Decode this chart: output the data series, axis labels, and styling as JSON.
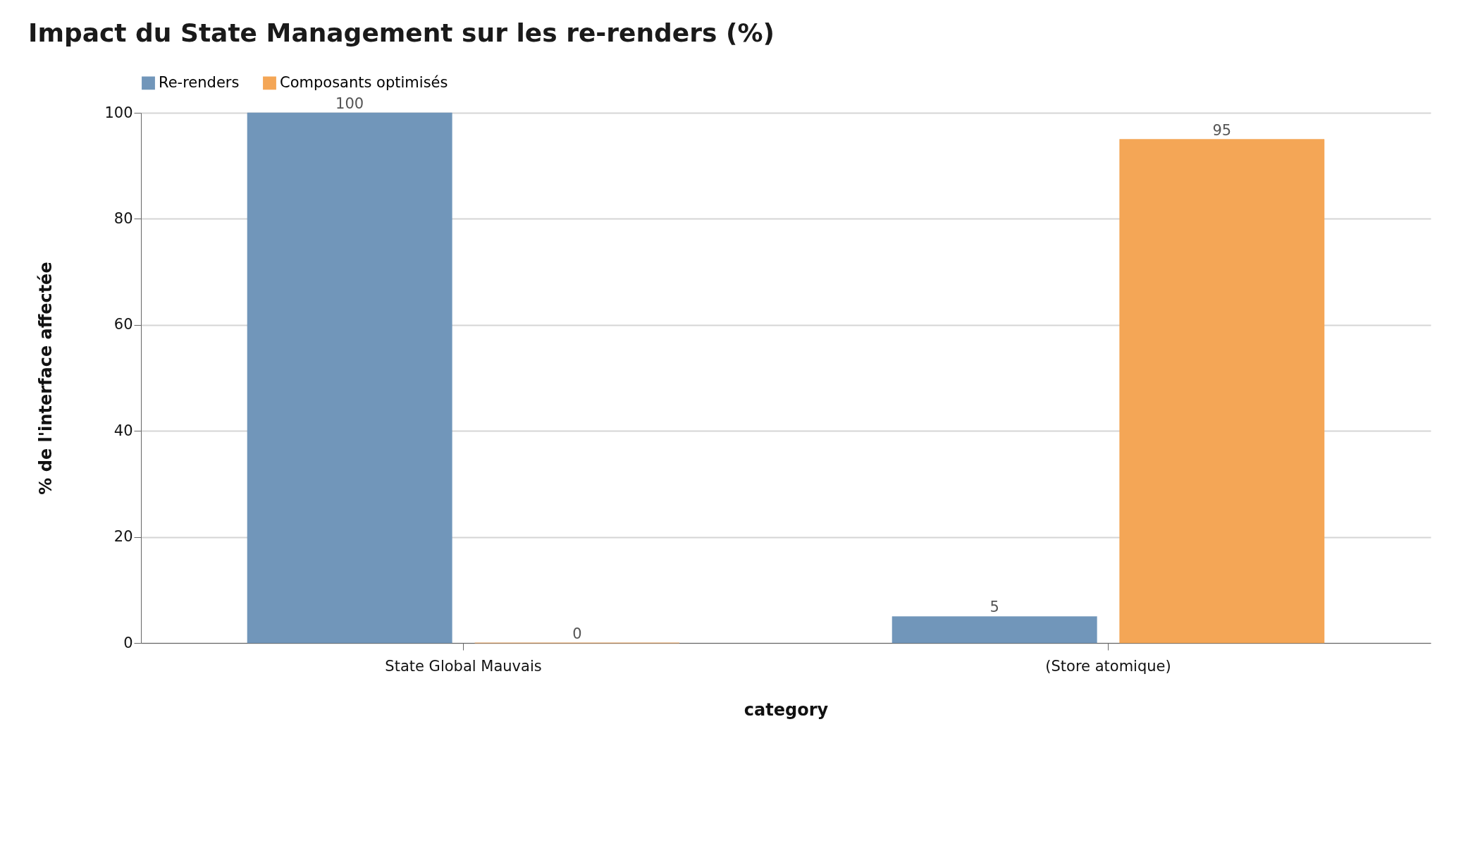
{
  "chart_data": {
    "type": "bar",
    "title": "Impact du State Management sur les re-renders (%)",
    "xlabel": "category",
    "ylabel": "% de l'interface affectée",
    "categories": [
      "State Global Mauvais",
      "(Store atomique)"
    ],
    "series": [
      {
        "name": "Re-renders",
        "color": "#7196ba",
        "values": [
          100,
          5
        ]
      },
      {
        "name": "Composants optimisés",
        "color": "#f4a656",
        "values": [
          0,
          95
        ]
      }
    ],
    "ylim": [
      0,
      100
    ],
    "yticks": [
      0,
      20,
      40,
      60,
      80,
      100
    ],
    "grid": "y",
    "legend": "top left",
    "data_labels": true
  }
}
